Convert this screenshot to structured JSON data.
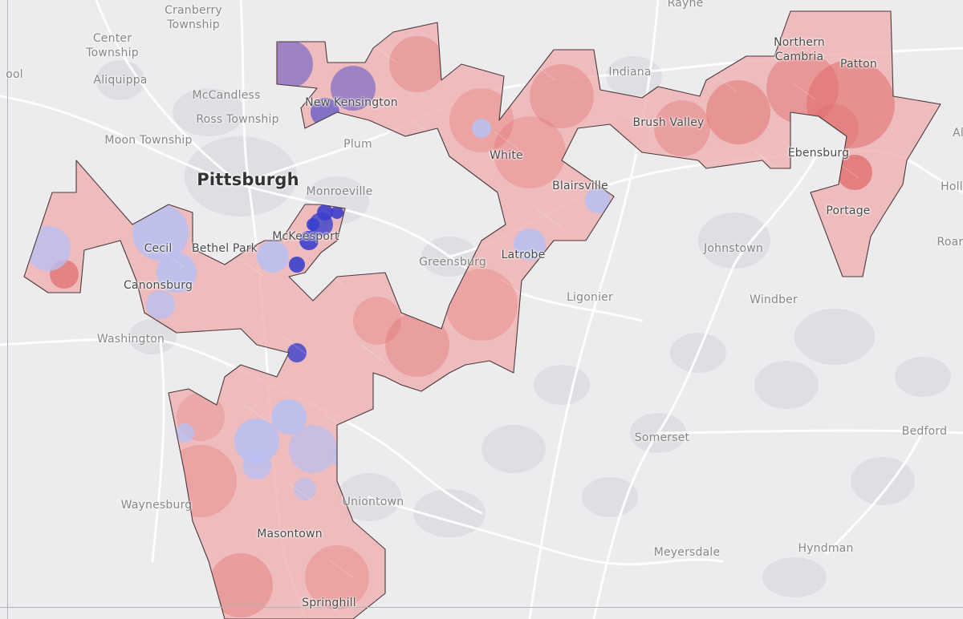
{
  "colors": {
    "background": "#ececee",
    "road": "#ffffff",
    "urban_gray": "#d6d6da",
    "district_outline": "#4a3a3a",
    "strong_dem": "#3b3fcc",
    "lean_dem": "#b9bff0",
    "lean_rep": "#f0b4b4",
    "strong_rep": "#e06b6b"
  },
  "places": {
    "cranberry": "Cranberry\nTownship",
    "rayne": "Rayne",
    "center_township": "Center\nTownship",
    "aliquippa": "Aliquippa",
    "mccandless": "McCandless",
    "ross_township": "Ross Township",
    "moon_township": "Moon Township",
    "pittsburgh": "Pittsburgh",
    "plum": "Plum",
    "new_kensington": "New Kensington",
    "monroeville": "Monroeville",
    "mckeesport": "McKeesport",
    "cecil": "Cecil",
    "bethel_park": "Bethel Park",
    "canonsburg": "Canonsburg",
    "washington": "Washington",
    "greensburg": "Greensburg",
    "latrobe": "Latrobe",
    "blairsville": "Blairsville",
    "white": "White",
    "indiana": "Indiana",
    "brush_valley": "Brush Valley",
    "northern_cambria": "Northern\nCambria",
    "patton": "Patton",
    "ebensburg": "Ebensburg",
    "portage": "Portage",
    "johnstown": "Johnstown",
    "ligonier": "Ligonier",
    "windber": "Windber",
    "somerset": "Somerset",
    "bedford": "Bedford",
    "meyersdale": "Meyersdale",
    "hyndman": "Hyndman",
    "waynesburg": "Waynesburg",
    "uniontown": "Uniontown",
    "masontown": "Masontown",
    "springhill": "Springhill",
    "hollid": "Holli",
    "roaring": "Roari",
    "altoona_edge": "Al",
    "pool": "ool"
  }
}
